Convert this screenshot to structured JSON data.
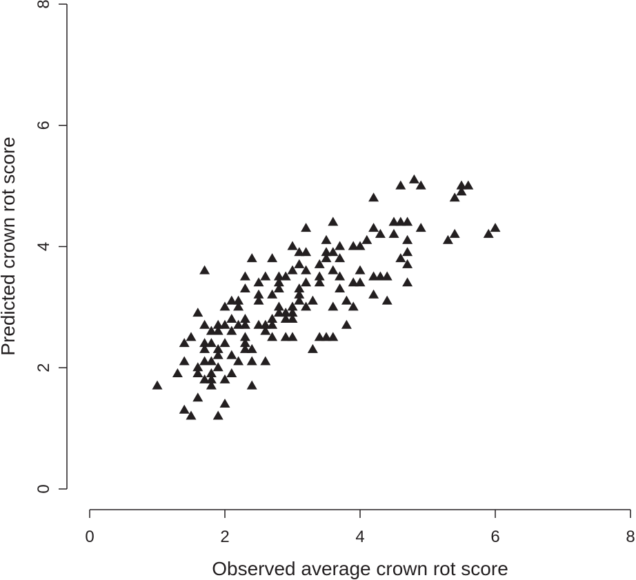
{
  "chart_data": {
    "type": "scatter",
    "xlabel": "Observed average crown rot score",
    "ylabel": "Predicted crown rot score",
    "xlim": [
      0,
      8
    ],
    "ylim": [
      0,
      8
    ],
    "xticks": [
      "0",
      "2",
      "4",
      "6",
      "8"
    ],
    "yticks": [
      "0",
      "2",
      "4",
      "6",
      "8"
    ],
    "marker": "filled-triangle",
    "marker_color": "#231f20",
    "grid": false,
    "points": [
      [
        1.0,
        1.7
      ],
      [
        1.3,
        1.9
      ],
      [
        1.4,
        2.1
      ],
      [
        1.4,
        2.4
      ],
      [
        1.5,
        2.5
      ],
      [
        1.4,
        1.3
      ],
      [
        1.5,
        1.2
      ],
      [
        1.6,
        1.5
      ],
      [
        1.6,
        1.9
      ],
      [
        1.6,
        2.0
      ],
      [
        1.6,
        2.9
      ],
      [
        1.7,
        1.8
      ],
      [
        1.7,
        2.1
      ],
      [
        1.7,
        2.3
      ],
      [
        1.7,
        2.4
      ],
      [
        1.7,
        2.7
      ],
      [
        1.7,
        3.6
      ],
      [
        1.8,
        1.8
      ],
      [
        1.8,
        1.9
      ],
      [
        1.8,
        2.1
      ],
      [
        1.8,
        2.4
      ],
      [
        1.8,
        2.6
      ],
      [
        1.8,
        1.7
      ],
      [
        1.9,
        2.0
      ],
      [
        1.9,
        2.2
      ],
      [
        1.9,
        2.3
      ],
      [
        1.9,
        2.6
      ],
      [
        1.9,
        2.7
      ],
      [
        1.9,
        1.2
      ],
      [
        2.0,
        1.4
      ],
      [
        2.0,
        1.8
      ],
      [
        2.0,
        2.4
      ],
      [
        2.0,
        2.7
      ],
      [
        2.0,
        3.0
      ],
      [
        2.1,
        1.9
      ],
      [
        2.1,
        2.2
      ],
      [
        2.1,
        2.6
      ],
      [
        2.1,
        2.8
      ],
      [
        2.1,
        3.1
      ],
      [
        2.2,
        2.1
      ],
      [
        2.2,
        2.7
      ],
      [
        2.2,
        3.0
      ],
      [
        2.2,
        3.1
      ],
      [
        2.3,
        2.3
      ],
      [
        2.3,
        2.4
      ],
      [
        2.3,
        2.5
      ],
      [
        2.3,
        2.7
      ],
      [
        2.3,
        2.8
      ],
      [
        2.3,
        3.3
      ],
      [
        2.3,
        3.5
      ],
      [
        2.4,
        1.7
      ],
      [
        2.4,
        2.1
      ],
      [
        2.4,
        2.3
      ],
      [
        2.4,
        3.8
      ],
      [
        2.5,
        2.7
      ],
      [
        2.5,
        3.1
      ],
      [
        2.5,
        3.2
      ],
      [
        2.5,
        3.4
      ],
      [
        2.6,
        2.1
      ],
      [
        2.6,
        2.6
      ],
      [
        2.6,
        2.7
      ],
      [
        2.6,
        3.5
      ],
      [
        2.7,
        2.5
      ],
      [
        2.7,
        2.7
      ],
      [
        2.7,
        2.8
      ],
      [
        2.7,
        3.2
      ],
      [
        2.7,
        3.8
      ],
      [
        2.8,
        2.9
      ],
      [
        2.8,
        3.0
      ],
      [
        2.8,
        3.3
      ],
      [
        2.8,
        3.4
      ],
      [
        2.8,
        3.5
      ],
      [
        2.9,
        2.5
      ],
      [
        2.9,
        2.8
      ],
      [
        2.9,
        2.9
      ],
      [
        2.9,
        3.5
      ],
      [
        3.0,
        2.5
      ],
      [
        3.0,
        2.8
      ],
      [
        3.0,
        2.9
      ],
      [
        3.0,
        3.0
      ],
      [
        3.0,
        3.6
      ],
      [
        3.0,
        4.0
      ],
      [
        3.1,
        3.1
      ],
      [
        3.1,
        3.2
      ],
      [
        3.1,
        3.3
      ],
      [
        3.1,
        3.7
      ],
      [
        3.1,
        3.9
      ],
      [
        3.2,
        3.0
      ],
      [
        3.2,
        3.4
      ],
      [
        3.2,
        3.6
      ],
      [
        3.2,
        3.9
      ],
      [
        3.2,
        4.3
      ],
      [
        3.3,
        2.3
      ],
      [
        3.3,
        3.1
      ],
      [
        3.4,
        2.5
      ],
      [
        3.4,
        3.4
      ],
      [
        3.4,
        3.5
      ],
      [
        3.4,
        3.7
      ],
      [
        3.5,
        2.5
      ],
      [
        3.5,
        3.8
      ],
      [
        3.5,
        3.9
      ],
      [
        3.5,
        4.1
      ],
      [
        3.6,
        2.5
      ],
      [
        3.6,
        3.0
      ],
      [
        3.6,
        3.6
      ],
      [
        3.6,
        3.9
      ],
      [
        3.6,
        4.4
      ],
      [
        3.7,
        3.3
      ],
      [
        3.7,
        3.5
      ],
      [
        3.7,
        3.8
      ],
      [
        3.7,
        4.0
      ],
      [
        3.8,
        2.7
      ],
      [
        3.8,
        3.1
      ],
      [
        3.9,
        3.0
      ],
      [
        3.9,
        3.4
      ],
      [
        3.9,
        4.0
      ],
      [
        4.0,
        3.4
      ],
      [
        4.0,
        3.6
      ],
      [
        4.0,
        4.0
      ],
      [
        4.1,
        4.1
      ],
      [
        4.2,
        3.2
      ],
      [
        4.2,
        3.5
      ],
      [
        4.2,
        4.3
      ],
      [
        4.2,
        4.8
      ],
      [
        4.3,
        3.5
      ],
      [
        4.3,
        4.2
      ],
      [
        4.4,
        3.1
      ],
      [
        4.4,
        3.5
      ],
      [
        4.5,
        4.2
      ],
      [
        4.5,
        4.4
      ],
      [
        4.6,
        3.8
      ],
      [
        4.6,
        4.4
      ],
      [
        4.6,
        5.0
      ],
      [
        4.7,
        3.4
      ],
      [
        4.7,
        3.7
      ],
      [
        4.7,
        3.9
      ],
      [
        4.7,
        4.1
      ],
      [
        4.7,
        4.4
      ],
      [
        4.8,
        5.1
      ],
      [
        4.9,
        4.3
      ],
      [
        4.9,
        5.0
      ],
      [
        5.3,
        4.1
      ],
      [
        5.4,
        4.2
      ],
      [
        5.4,
        4.8
      ],
      [
        5.5,
        4.9
      ],
      [
        5.5,
        5.0
      ],
      [
        5.6,
        5.0
      ],
      [
        5.9,
        4.2
      ],
      [
        6.0,
        4.3
      ]
    ]
  }
}
